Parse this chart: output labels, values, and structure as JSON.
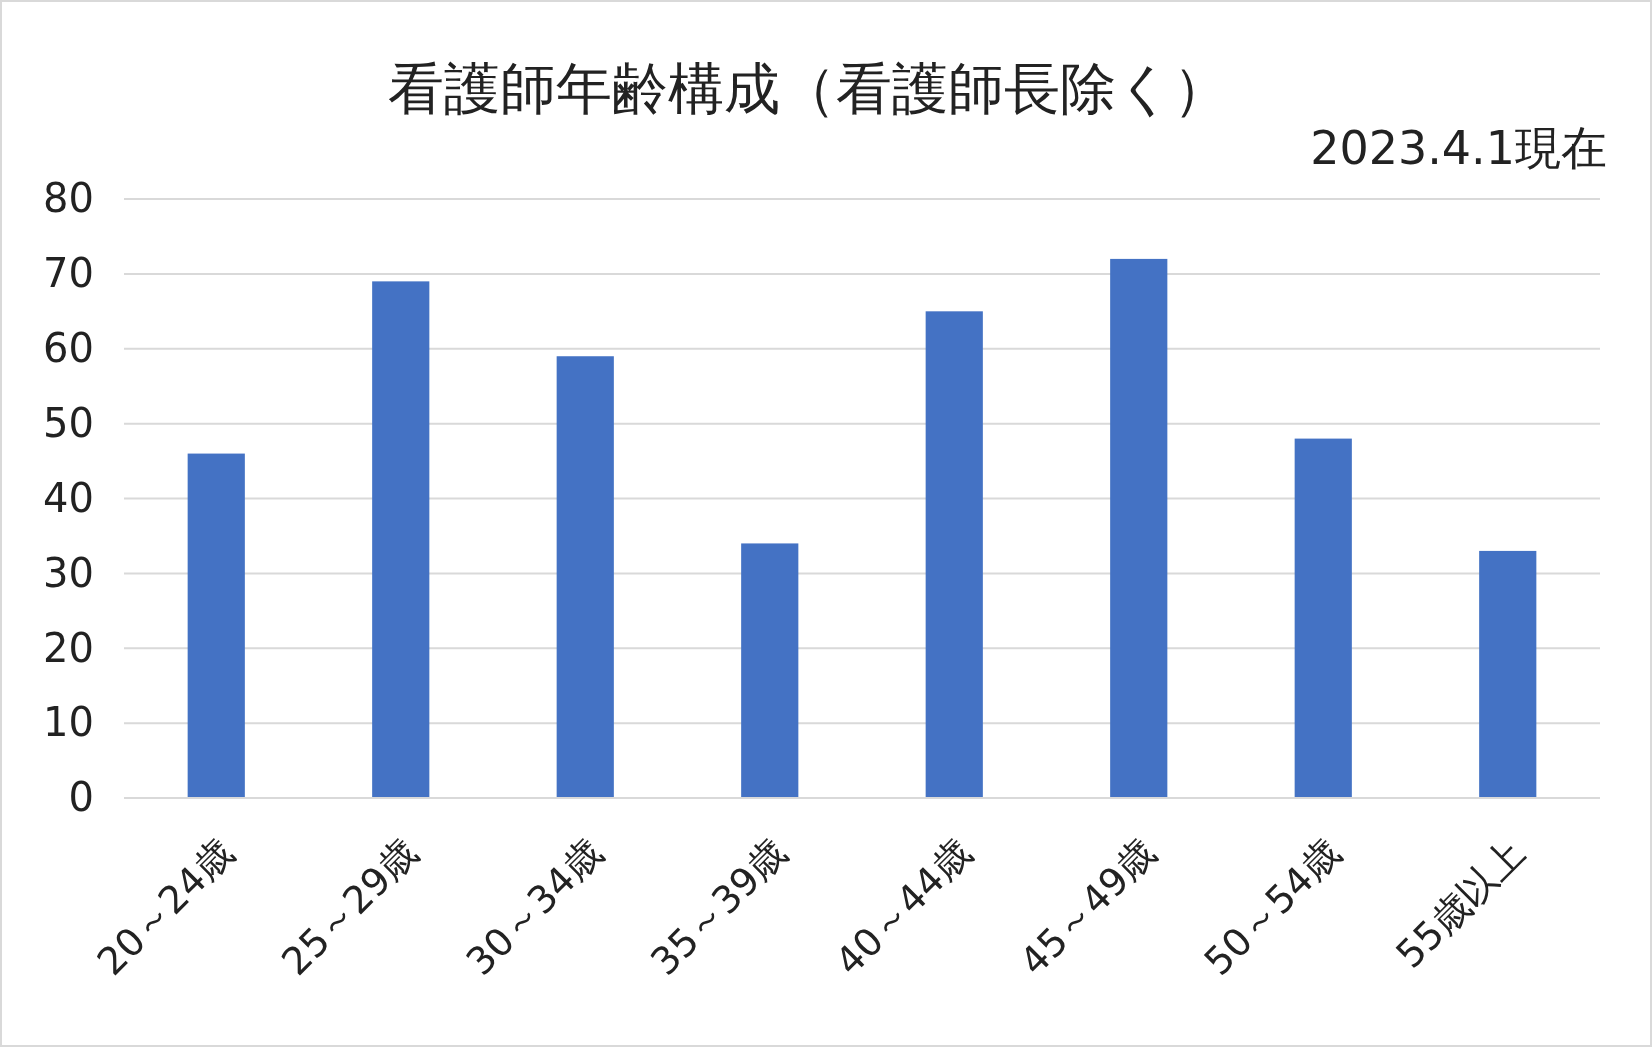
{
  "chart_data": {
    "type": "bar",
    "title": "看護師年齢構成（看護師長除く）",
    "subtitle": "2023.4.1現在",
    "categories": [
      "20～24歳",
      "25～29歳",
      "30～34歳",
      "35～39歳",
      "40～44歳",
      "45～49歳",
      "50～54歳",
      "55歳以上"
    ],
    "values": [
      46,
      69,
      59,
      34,
      65,
      72,
      48,
      33
    ],
    "color": "#4472c4",
    "ylim": [
      0,
      80
    ],
    "yticks": [
      0,
      10,
      20,
      30,
      40,
      50,
      60,
      70,
      80
    ],
    "grid": "y"
  }
}
